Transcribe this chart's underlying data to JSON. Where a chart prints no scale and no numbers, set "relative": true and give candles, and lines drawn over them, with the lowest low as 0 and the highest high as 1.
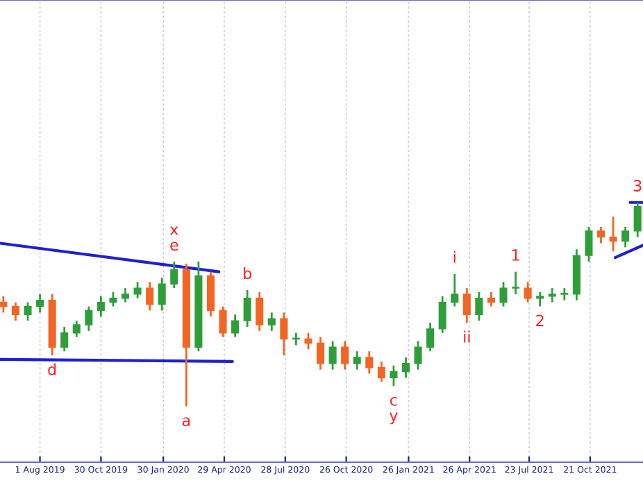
{
  "chart_data": {
    "type": "candlestick",
    "relative": true,
    "grid": "x",
    "x": [
      "2019-06-08",
      "2019-06-26",
      "2019-07-14",
      "2019-08-01",
      "2019-08-19",
      "2019-09-06",
      "2019-09-24",
      "2019-10-12",
      "2019-10-30",
      "2019-11-17",
      "2019-12-05",
      "2019-12-23",
      "2020-01-10",
      "2020-01-28",
      "2020-02-15",
      "2020-03-04",
      "2020-03-22",
      "2020-04-09",
      "2020-04-27",
      "2020-05-15",
      "2020-06-02",
      "2020-06-20",
      "2020-07-08",
      "2020-07-26",
      "2020-08-13",
      "2020-08-31",
      "2020-09-18",
      "2020-10-06",
      "2020-10-24",
      "2020-11-11",
      "2020-11-29",
      "2020-12-17",
      "2021-01-04",
      "2021-01-22",
      "2021-02-09",
      "2021-02-27",
      "2021-03-17",
      "2021-04-04",
      "2021-04-22",
      "2021-05-10",
      "2021-05-28",
      "2021-06-15",
      "2021-07-03",
      "2021-07-21",
      "2021-08-08",
      "2021-08-26",
      "2021-09-13",
      "2021-10-01",
      "2021-10-19",
      "2021-11-06",
      "2021-11-24",
      "2021-12-12",
      "2021-12-30"
    ],
    "ohlc": [
      [
        0.51,
        0.54,
        0.46,
        0.49
      ],
      [
        0.49,
        0.51,
        0.42,
        0.45
      ],
      [
        0.45,
        0.51,
        0.42,
        0.49
      ],
      [
        0.49,
        0.55,
        0.46,
        0.52
      ],
      [
        0.52,
        0.55,
        0.25,
        0.29
      ],
      [
        0.29,
        0.39,
        0.27,
        0.36
      ],
      [
        0.36,
        0.42,
        0.34,
        0.4
      ],
      [
        0.4,
        0.49,
        0.37,
        0.47
      ],
      [
        0.47,
        0.54,
        0.44,
        0.51
      ],
      [
        0.51,
        0.56,
        0.49,
        0.53
      ],
      [
        0.53,
        0.58,
        0.51,
        0.55
      ],
      [
        0.55,
        0.61,
        0.53,
        0.58
      ],
      [
        0.58,
        0.61,
        0.47,
        0.5
      ],
      [
        0.5,
        0.63,
        0.47,
        0.6
      ],
      [
        0.6,
        0.71,
        0.58,
        0.67
      ],
      [
        0.67,
        0.7,
        0,
        0.29
      ],
      [
        0.29,
        0.71,
        0.27,
        0.64
      ],
      [
        0.64,
        0.66,
        0.44,
        0.47
      ],
      [
        0.47,
        0.49,
        0.34,
        0.36
      ],
      [
        0.36,
        0.45,
        0.34,
        0.42
      ],
      [
        0.42,
        0.57,
        0.39,
        0.53
      ],
      [
        0.53,
        0.56,
        0.37,
        0.4
      ],
      [
        0.4,
        0.46,
        0.37,
        0.43
      ],
      [
        0.43,
        0.46,
        0.25,
        0.33
      ],
      [
        0.33,
        0.36,
        0.3,
        0.33
      ],
      [
        0.33,
        0.36,
        0.28,
        0.31
      ],
      [
        0.31,
        0.34,
        0.18,
        0.21
      ],
      [
        0.21,
        0.32,
        0.18,
        0.29
      ],
      [
        0.29,
        0.32,
        0.18,
        0.21
      ],
      [
        0.21,
        0.27,
        0.18,
        0.24
      ],
      [
        0.24,
        0.27,
        0.16,
        0.19
      ],
      [
        0.19,
        0.22,
        0.12,
        0.14
      ],
      [
        0.14,
        0.2,
        0.1,
        0.17
      ],
      [
        0.17,
        0.24,
        0.14,
        0.21
      ],
      [
        0.21,
        0.32,
        0.18,
        0.29
      ],
      [
        0.29,
        0.41,
        0.27,
        0.38
      ],
      [
        0.38,
        0.54,
        0.36,
        0.51
      ],
      [
        0.51,
        0.65,
        0.49,
        0.55
      ],
      [
        0.55,
        0.58,
        0.41,
        0.45
      ],
      [
        0.45,
        0.56,
        0.42,
        0.53
      ],
      [
        0.53,
        0.56,
        0.49,
        0.51
      ],
      [
        0.51,
        0.61,
        0.49,
        0.58
      ],
      [
        0.58,
        0.66,
        0.55,
        0.58
      ],
      [
        0.58,
        0.61,
        0.51,
        0.53
      ],
      [
        0.53,
        0.56,
        0.49,
        0.54
      ],
      [
        0.54,
        0.58,
        0.51,
        0.55
      ],
      [
        0.55,
        0.58,
        0.52,
        0.55
      ],
      [
        0.55,
        0.77,
        0.52,
        0.74
      ],
      [
        0.74,
        0.88,
        0.71,
        0.86
      ],
      [
        0.86,
        0.88,
        0.8,
        0.83
      ],
      [
        0.83,
        0.93,
        0.76,
        0.81
      ],
      [
        0.81,
        0.88,
        0.78,
        0.86
      ],
      [
        0.86,
        1,
        0.83,
        0.98
      ]
    ],
    "colors": [
      "#f26522",
      "#f26522",
      "#2e9e3a",
      "#2e9e3a",
      "#f26522",
      "#2e9e3a",
      "#2e9e3a",
      "#2e9e3a",
      "#2e9e3a",
      "#2e9e3a",
      "#2e9e3a",
      "#2e9e3a",
      "#f26522",
      "#2e9e3a",
      "#2e9e3a",
      "#f26522",
      "#2e9e3a",
      "#f26522",
      "#f26522",
      "#2e9e3a",
      "#2e9e3a",
      "#f26522",
      "#2e9e3a",
      "#f26522",
      "#2e9e3a",
      "#f26522",
      "#f26522",
      "#2e9e3a",
      "#f26522",
      "#2e9e3a",
      "#f26522",
      "#f26522",
      "#2e9e3a",
      "#2e9e3a",
      "#2e9e3a",
      "#2e9e3a",
      "#2e9e3a",
      "#2e9e3a",
      "#f26522",
      "#2e9e3a",
      "#f26522",
      "#2e9e3a",
      "#2e9e3a",
      "#f26522",
      "#2e9e3a",
      "#2e9e3a",
      "#2e9e3a",
      "#2e9e3a",
      "#2e9e3a",
      "#f26522",
      "#f26522",
      "#2e9e3a",
      "#2e9e3a"
    ],
    "series": [
      {
        "type": "line",
        "color": "#2020d0",
        "x": [
          "2019-06-03",
          "2020-04-21"
        ],
        "values": [
          0.8,
          0.66
        ]
      },
      {
        "type": "line",
        "color": "#2020d0",
        "x": [
          "2019-06-03",
          "2020-05-11"
        ],
        "values": [
          0.23,
          0.22
        ]
      },
      {
        "type": "line",
        "color": "#2020d0",
        "x": [
          "2021-11-27",
          "2022-01-07"
        ],
        "values": [
          0.73,
          0.79
        ]
      },
      {
        "type": "line",
        "color": "#2020d0",
        "x": [
          "2021-12-19",
          "2022-01-07"
        ],
        "values": [
          1,
          1
        ]
      }
    ],
    "xlim": [
      "2019-06-03",
      "2022-01-07"
    ],
    "xticks": [
      {
        "value": "2019-08-01",
        "label": "1 Aug 2019"
      },
      {
        "value": "2019-10-30",
        "label": "30 Oct 2019"
      },
      {
        "value": "2020-01-30",
        "label": "30 Jan 2020"
      },
      {
        "value": "2020-04-29",
        "label": "29 Apr 2020"
      },
      {
        "value": "2020-07-28",
        "label": "28 Jul 2020"
      },
      {
        "value": "2020-10-26",
        "label": "26 Oct 2020"
      },
      {
        "value": "2021-01-26",
        "label": "26 Jan 2021"
      },
      {
        "value": "2021-04-26",
        "label": "26 Apr 2021"
      },
      {
        "value": "2021-07-23",
        "label": "23 Jul 2021"
      },
      {
        "value": "2021-10-21",
        "label": "21 Oct 2021"
      }
    ],
    "annotations": [
      {
        "text": "d",
        "x": "2019-08-19",
        "y": 0.25
      },
      {
        "text": "e",
        "x": "2020-02-15",
        "y": 0.71
      },
      {
        "text": "x",
        "x": "2020-02-15",
        "y": 0.71
      },
      {
        "text": "a",
        "x": "2020-03-04",
        "y": 0
      },
      {
        "text": "b",
        "x": "2020-06-02",
        "y": 0.57
      },
      {
        "text": "c",
        "x": "2021-01-04",
        "y": 0.1
      },
      {
        "text": "y",
        "x": "2021-01-04",
        "y": 0.1
      },
      {
        "text": "i",
        "x": "2021-04-04",
        "y": 0.65
      },
      {
        "text": "ii",
        "x": "2021-04-22",
        "y": 0.41
      },
      {
        "text": "1",
        "x": "2021-07-03",
        "y": 0.66
      },
      {
        "text": "2",
        "x": "2021-08-08",
        "y": 0.49
      },
      {
        "text": "3",
        "x": "2021-12-30",
        "y": 1
      }
    ]
  }
}
